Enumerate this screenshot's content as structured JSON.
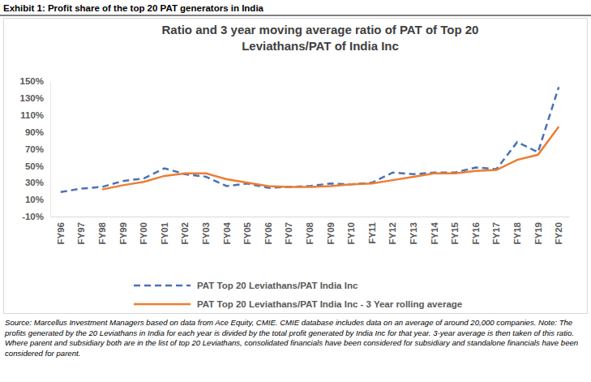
{
  "chart_data": {
    "type": "line",
    "figure_title": "Exhibit 1: Profit share of the top 20 PAT generators in India",
    "title": "Ratio and 3 year moving average ratio of PAT of Top 20 Leviathans/PAT of India Inc",
    "note": "Source: Marcellus Investment Managers based on data from Ace Equity, CMIE. CMIE database includes data on an average of around 20,000 companies. Note: The profits generated by the 20 Leviathans in India for each year is divided by the total profit generated by India Inc for that year. 3-year average is then taken of this ratio. Where parent and subsidiary both are in the list of top 20 Leviathans, consolidated financials have been considered for subsidiary and standalone financials have been considered for parent.",
    "categories": [
      "FY96",
      "FY97",
      "FY98",
      "FY99",
      "FY00",
      "FY01",
      "FY02",
      "FY03",
      "FY04",
      "FY05",
      "FY06",
      "FY07",
      "FY08",
      "FY09",
      "FY10",
      "FY11",
      "FY12",
      "FY13",
      "FY14",
      "FY15",
      "FY16",
      "FY17",
      "FY18",
      "FY19",
      "FY20"
    ],
    "series": [
      {
        "name": "PAT Top 20 Leviathans/PAT India Inc",
        "color": "#4a72b8",
        "line_style": "dashed",
        "values": [
          19,
          23,
          25,
          32,
          35,
          47,
          40,
          37,
          26,
          29,
          24,
          25,
          26,
          29,
          28,
          30,
          42,
          40,
          42,
          42,
          48,
          46,
          78,
          66,
          143
        ]
      },
      {
        "name": "PAT Top 20 Leviathans/PAT India Inc - 3 Year rolling average",
        "color": "#ed7d31",
        "line_style": "solid",
        "values": [
          null,
          null,
          22,
          27,
          31,
          38,
          41,
          41,
          34,
          30,
          26,
          25,
          25,
          26,
          28,
          29,
          33,
          37,
          41,
          41,
          44,
          45,
          57,
          63,
          96
        ]
      }
    ],
    "ylim": [
      -10,
      150
    ],
    "yticks": [
      {
        "value": -10,
        "label": "-10%"
      },
      {
        "value": 10,
        "label": "10%"
      },
      {
        "value": 30,
        "label": "30%"
      },
      {
        "value": 50,
        "label": "50%"
      },
      {
        "value": 70,
        "label": "70%"
      },
      {
        "value": 90,
        "label": "90%"
      },
      {
        "value": 110,
        "label": "110%"
      },
      {
        "value": 130,
        "label": "130%"
      },
      {
        "value": 150,
        "label": "150%"
      }
    ],
    "grid": false,
    "legend": "bottom"
  }
}
